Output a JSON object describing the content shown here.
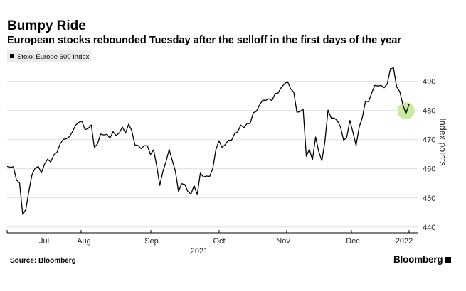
{
  "header": {
    "title": "Bumpy Ride",
    "subtitle": "European stocks rebounded Tuesday after the selloff in the first days of the year"
  },
  "footer": {
    "source": "Source: Bloomberg",
    "brand": "Bloomberg"
  },
  "colors": {
    "line": "#000000",
    "grid": "#e0e0e0",
    "highlight": "#c9eba0",
    "legend_bg": "#ececec"
  },
  "chart_data": {
    "type": "line",
    "ylabel": "Index points",
    "ylim": [
      438,
      496
    ],
    "yticks": [
      440,
      450,
      460,
      470,
      480,
      490
    ],
    "grid": "horizontal",
    "legend_position": "top-left",
    "x_month_labels": [
      "Jul",
      "Aug",
      "Sep",
      "Oct",
      "Nov",
      "Dec",
      "2022"
    ],
    "x_year_label": "2021",
    "series": [
      {
        "name": "Stoxx Europe 600 Index",
        "values": [
          460.8,
          460.5,
          460.7,
          456.2,
          455.1,
          444.3,
          446.0,
          452.5,
          458.0,
          460.2,
          460.8,
          458.6,
          461.6,
          463.3,
          462.3,
          464.8,
          465.6,
          468.5,
          470.1,
          470.3,
          471.0,
          472.8,
          475.0,
          475.9,
          476.3,
          473.4,
          473.8,
          475.0,
          467.3,
          468.5,
          471.9,
          471.6,
          471.8,
          470.5,
          472.7,
          471.4,
          472.3,
          474.3,
          472.2,
          475.3,
          473.1,
          468.2,
          468.0,
          466.9,
          467.9,
          467.9,
          464.9,
          466.5,
          461.1,
          454.3,
          459.1,
          462.5,
          466.6,
          462.9,
          459.2,
          452.2,
          454.9,
          454.6,
          452.2,
          451.3,
          454.2,
          451.1,
          458.5,
          457.2,
          457.5,
          457.4,
          460.1,
          466.5,
          469.6,
          467.3,
          468.3,
          469.8,
          469.7,
          472.0,
          472.7,
          475.0,
          474.1,
          475.5,
          475.5,
          479.2,
          479.7,
          481.9,
          483.5,
          483.5,
          484.0,
          483.4,
          485.8,
          486.0,
          487.9,
          489.1,
          489.9,
          487.4,
          486.3,
          479.4,
          479.6,
          480.5,
          464.3,
          466.6,
          463.1,
          470.9,
          465.9,
          462.7,
          469.4,
          480.1,
          477.4,
          477.4,
          476.4,
          474.3,
          469.8,
          470.8,
          476.6,
          472.4,
          468.0,
          474.3,
          477.6,
          483.2,
          483.0,
          486.0,
          488.6,
          488.4,
          488.6,
          487.8,
          489.1,
          494.3,
          494.6,
          488.1,
          486.5,
          482.0,
          478.9,
          482.2
        ]
      }
    ],
    "highlight_point_index": 128
  }
}
